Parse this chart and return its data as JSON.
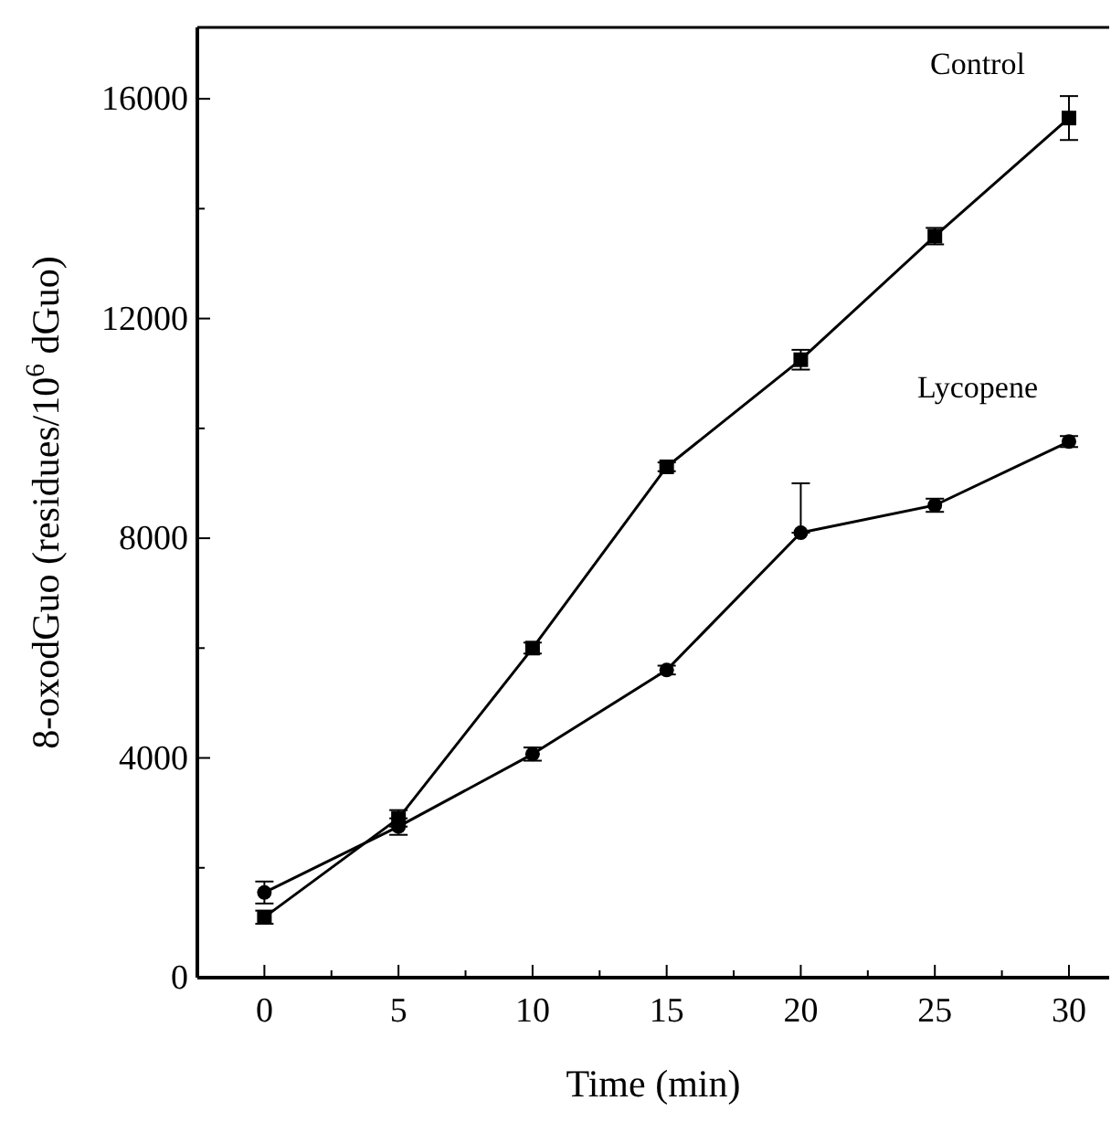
{
  "chart_data": {
    "type": "line",
    "xlabel": "Time (min)",
    "ylabel": "8-oxodGuo (residues/10$^{6}$ dGuo)",
    "x": [
      0,
      5,
      10,
      15,
      20,
      25,
      30
    ],
    "series": [
      {
        "name": "Control",
        "color": "#000000",
        "marker": "square",
        "values": [
          1100,
          2900,
          6000,
          9300,
          11250,
          13500,
          15650
        ],
        "errors": [
          120,
          150,
          100,
          80,
          180,
          150,
          400
        ]
      },
      {
        "name": "Lycopene",
        "color": "#000000",
        "marker": "circle",
        "values": [
          1550,
          2750,
          4070,
          5600,
          8100,
          8600,
          9760
        ],
        "errors": [
          200,
          150,
          120,
          80,
          [
            8100,
            9000
          ],
          120,
          100
        ]
      }
    ],
    "xlim": [
      -2.5,
      31.5
    ],
    "ylim": [
      0,
      17300
    ],
    "xticks": [
      0,
      {
        "value": 2.5,
        "label": null
      },
      5,
      {
        "value": 7.5,
        "label": null
      },
      10,
      {
        "value": 12.5,
        "label": null
      },
      15,
      {
        "value": 17.5,
        "label": null
      },
      20,
      {
        "value": 22.5,
        "label": null
      },
      25,
      {
        "value": 27.5,
        "label": null
      },
      30
    ],
    "yticks": [
      0,
      {
        "value": 2000,
        "label": null
      },
      4000,
      {
        "value": 6000,
        "label": null
      },
      8000,
      {
        "value": 10000,
        "label": null
      },
      12000,
      {
        "value": 14000,
        "label": null
      },
      16000
    ],
    "grid": false,
    "legend": false,
    "line_style": "solid"
  }
}
